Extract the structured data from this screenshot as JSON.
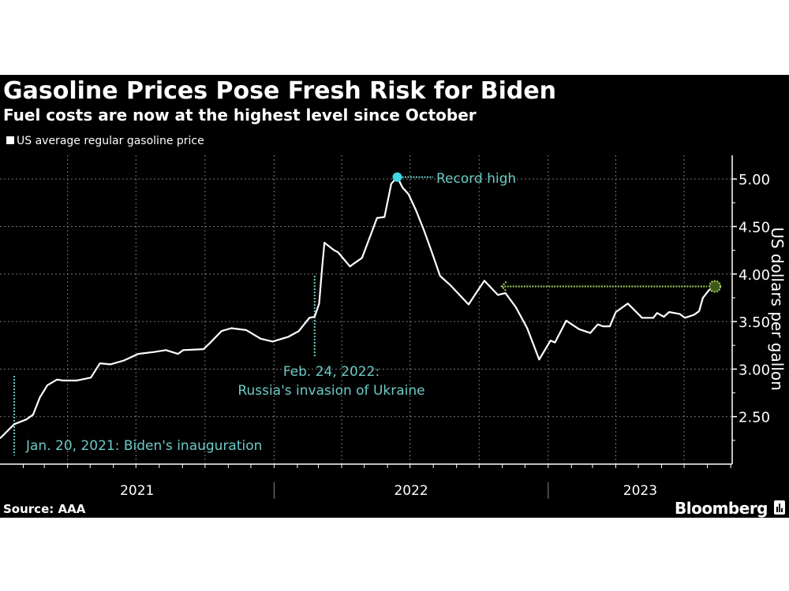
{
  "header": {
    "title": "Gasoline Prices Pose Fresh Risk for Biden",
    "subtitle": "Fuel costs are now at the highest level since October"
  },
  "footer": {
    "source": "Source: AAA",
    "brand": "Bloomberg"
  },
  "colors": {
    "background": "#000000",
    "line": "#ffffff",
    "annotation": "#6ccac6",
    "record_dot": "#3fd7e2",
    "current_marker": "#a6d65a",
    "grid": "#777777"
  },
  "chart_data": {
    "type": "line",
    "title": "Gasoline Prices Pose Fresh Risk for Biden",
    "subtitle": "Fuel costs are now at the highest level since October",
    "ylabel": "US dollars per gallon",
    "ylim": [
      2.0,
      5.25
    ],
    "xlim": [
      "2021-01-01",
      "2023-09-03"
    ],
    "yticks": [
      "2.50",
      "3.00",
      "3.50",
      "4.00",
      "4.50",
      "5.00"
    ],
    "xticks": [
      "2021",
      "2022",
      "2023"
    ],
    "grid": true,
    "legend_position": "top-left",
    "series": [
      {
        "name": "US average regular gasoline price",
        "points": [
          [
            "2021-01-01",
            2.27
          ],
          [
            "2021-01-20",
            2.42
          ],
          [
            "2021-02-05",
            2.47
          ],
          [
            "2021-02-14",
            2.52
          ],
          [
            "2021-02-23",
            2.7
          ],
          [
            "2021-03-05",
            2.83
          ],
          [
            "2021-03-18",
            2.89
          ],
          [
            "2021-03-26",
            2.88
          ],
          [
            "2021-04-13",
            2.88
          ],
          [
            "2021-05-02",
            2.91
          ],
          [
            "2021-05-14",
            3.06
          ],
          [
            "2021-05-28",
            3.05
          ],
          [
            "2021-06-15",
            3.09
          ],
          [
            "2021-07-04",
            3.16
          ],
          [
            "2021-07-25",
            3.18
          ],
          [
            "2021-08-10",
            3.2
          ],
          [
            "2021-08-26",
            3.16
          ],
          [
            "2021-09-02",
            3.2
          ],
          [
            "2021-09-29",
            3.21
          ],
          [
            "2021-10-07",
            3.27
          ],
          [
            "2021-10-23",
            3.4
          ],
          [
            "2021-11-05",
            3.43
          ],
          [
            "2021-11-25",
            3.41
          ],
          [
            "2021-12-14",
            3.32
          ],
          [
            "2021-12-30",
            3.29
          ],
          [
            "2022-01-20",
            3.34
          ],
          [
            "2022-02-03",
            3.4
          ],
          [
            "2022-02-17",
            3.54
          ],
          [
            "2022-02-24",
            3.55
          ],
          [
            "2022-03-02",
            3.69
          ],
          [
            "2022-03-06",
            4.07
          ],
          [
            "2022-03-09",
            4.33
          ],
          [
            "2022-03-22",
            4.25
          ],
          [
            "2022-03-27",
            4.23
          ],
          [
            "2022-04-12",
            4.08
          ],
          [
            "2022-04-19",
            4.12
          ],
          [
            "2022-04-28",
            4.17
          ],
          [
            "2022-05-10",
            4.42
          ],
          [
            "2022-05-18",
            4.59
          ],
          [
            "2022-05-28",
            4.6
          ],
          [
            "2022-06-06",
            4.95
          ],
          [
            "2022-06-14",
            5.02
          ],
          [
            "2022-06-21",
            4.91
          ],
          [
            "2022-06-29",
            4.84
          ],
          [
            "2022-07-09",
            4.67
          ],
          [
            "2022-07-20",
            4.45
          ],
          [
            "2022-07-30",
            4.23
          ],
          [
            "2022-08-10",
            3.98
          ],
          [
            "2022-08-24",
            3.88
          ],
          [
            "2022-09-17",
            3.68
          ],
          [
            "2022-09-27",
            3.8
          ],
          [
            "2022-10-08",
            3.93
          ],
          [
            "2022-10-26",
            3.78
          ],
          [
            "2022-11-05",
            3.8
          ],
          [
            "2022-11-19",
            3.65
          ],
          [
            "2022-12-04",
            3.43
          ],
          [
            "2022-12-20",
            3.1
          ],
          [
            "2023-01-04",
            3.3
          ],
          [
            "2023-01-10",
            3.28
          ],
          [
            "2023-01-25",
            3.51
          ],
          [
            "2023-02-11",
            3.42
          ],
          [
            "2023-02-26",
            3.38
          ],
          [
            "2023-03-08",
            3.47
          ],
          [
            "2023-03-15",
            3.45
          ],
          [
            "2023-03-24",
            3.45
          ],
          [
            "2023-04-01",
            3.6
          ],
          [
            "2023-04-17",
            3.69
          ],
          [
            "2023-05-06",
            3.54
          ],
          [
            "2023-05-21",
            3.54
          ],
          [
            "2023-05-26",
            3.59
          ],
          [
            "2023-06-04",
            3.55
          ],
          [
            "2023-06-11",
            3.6
          ],
          [
            "2023-06-25",
            3.58
          ],
          [
            "2023-07-02",
            3.54
          ],
          [
            "2023-07-14",
            3.57
          ],
          [
            "2023-07-21",
            3.61
          ],
          [
            "2023-07-26",
            3.75
          ],
          [
            "2023-08-03",
            3.83
          ],
          [
            "2023-08-11",
            3.86
          ]
        ]
      }
    ],
    "annotations": {
      "inauguration": {
        "date": "2021-01-20",
        "text": "Jan. 20, 2021: Biden's inauguration"
      },
      "invasion": {
        "date": "2022-02-24",
        "line1": "Feb. 24, 2022:",
        "line2": "Russia's invasion of Ukraine"
      },
      "record": {
        "date": "2022-06-14",
        "value": 5.02,
        "text": "Record high"
      },
      "current_level": {
        "from_date": "2022-10-31",
        "value": 3.87
      }
    }
  }
}
